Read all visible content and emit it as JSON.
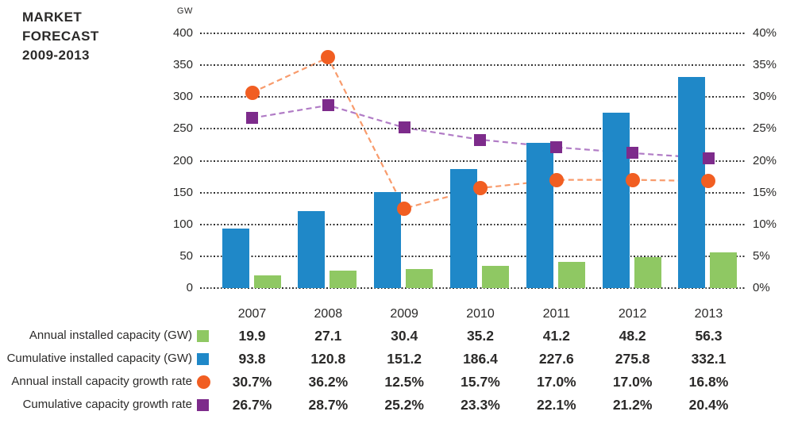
{
  "title": "MARKET\nFORECAST\n2009-2013",
  "colors": {
    "text": "#2B2A29",
    "gridline": "#2D2D2D",
    "bar_blue": "#1F88C8",
    "bar_green": "#8FC863",
    "marker_orange": "#F15E22",
    "line_orange": "#F89B6C",
    "marker_purple": "#7D2B8B",
    "line_purple": "#B17CC6"
  },
  "chart_data": {
    "type": "bar+line combo",
    "title": "MARKET FORECAST 2009-2013",
    "grid": "dotted horizontal",
    "legend_position": "table rows, left of table",
    "categories": [
      "2007",
      "2008",
      "2009",
      "2010",
      "2011",
      "2012",
      "2013"
    ],
    "left_axis": {
      "unit": "GW",
      "range": [
        0,
        400
      ],
      "ticks": [
        "400",
        "350",
        "300",
        "250",
        "200",
        "150",
        "100",
        "50",
        "0"
      ]
    },
    "right_axis": {
      "unit": "%",
      "range": [
        0,
        40
      ],
      "ticks": [
        "40%",
        "35%",
        "30%",
        "25%",
        "20%",
        "15%",
        "10%",
        "5%",
        "0%"
      ]
    },
    "series": [
      {
        "id": "annual_gw",
        "name": "Annual installed capacity (GW)",
        "type": "bar",
        "axis": "left",
        "swatch": "square",
        "color": "#8FC863",
        "values": [
          19.9,
          27.1,
          30.4,
          35.2,
          41.2,
          48.2,
          56.3
        ],
        "display": [
          "19.9",
          "27.1",
          "30.4",
          "35.2",
          "41.2",
          "48.2",
          "56.3"
        ]
      },
      {
        "id": "cumulative_gw",
        "name": "Cumulative installed capacity (GW)",
        "type": "bar",
        "axis": "left",
        "swatch": "square",
        "color": "#1F88C8",
        "values": [
          93.8,
          120.8,
          151.2,
          186.4,
          227.6,
          275.8,
          332.1
        ],
        "display": [
          "93.8",
          "120.8",
          "151.2",
          "186.4",
          "227.6",
          "275.8",
          "332.1"
        ]
      },
      {
        "id": "annual_growth",
        "name": "Annual install capacity growth rate",
        "type": "line",
        "axis": "right",
        "swatch": "circle",
        "color": "#F15E22",
        "line_color": "#F89B6C",
        "values": [
          30.7,
          36.2,
          12.5,
          15.7,
          17.0,
          17.0,
          16.8
        ],
        "display": [
          "30.7%",
          "36.2%",
          "12.5%",
          "15.7%",
          "17.0%",
          "17.0%",
          "16.8%"
        ]
      },
      {
        "id": "cumulative_growth",
        "name": "Cumulative capacity growth rate",
        "type": "line",
        "axis": "right",
        "swatch": "square",
        "color": "#7D2B8B",
        "line_color": "#B17CC6",
        "values": [
          26.7,
          28.7,
          25.2,
          23.3,
          22.1,
          21.2,
          20.4
        ],
        "display": [
          "26.7%",
          "28.7%",
          "25.2%",
          "23.3%",
          "22.1%",
          "21.2%",
          "20.4%"
        ]
      }
    ]
  }
}
